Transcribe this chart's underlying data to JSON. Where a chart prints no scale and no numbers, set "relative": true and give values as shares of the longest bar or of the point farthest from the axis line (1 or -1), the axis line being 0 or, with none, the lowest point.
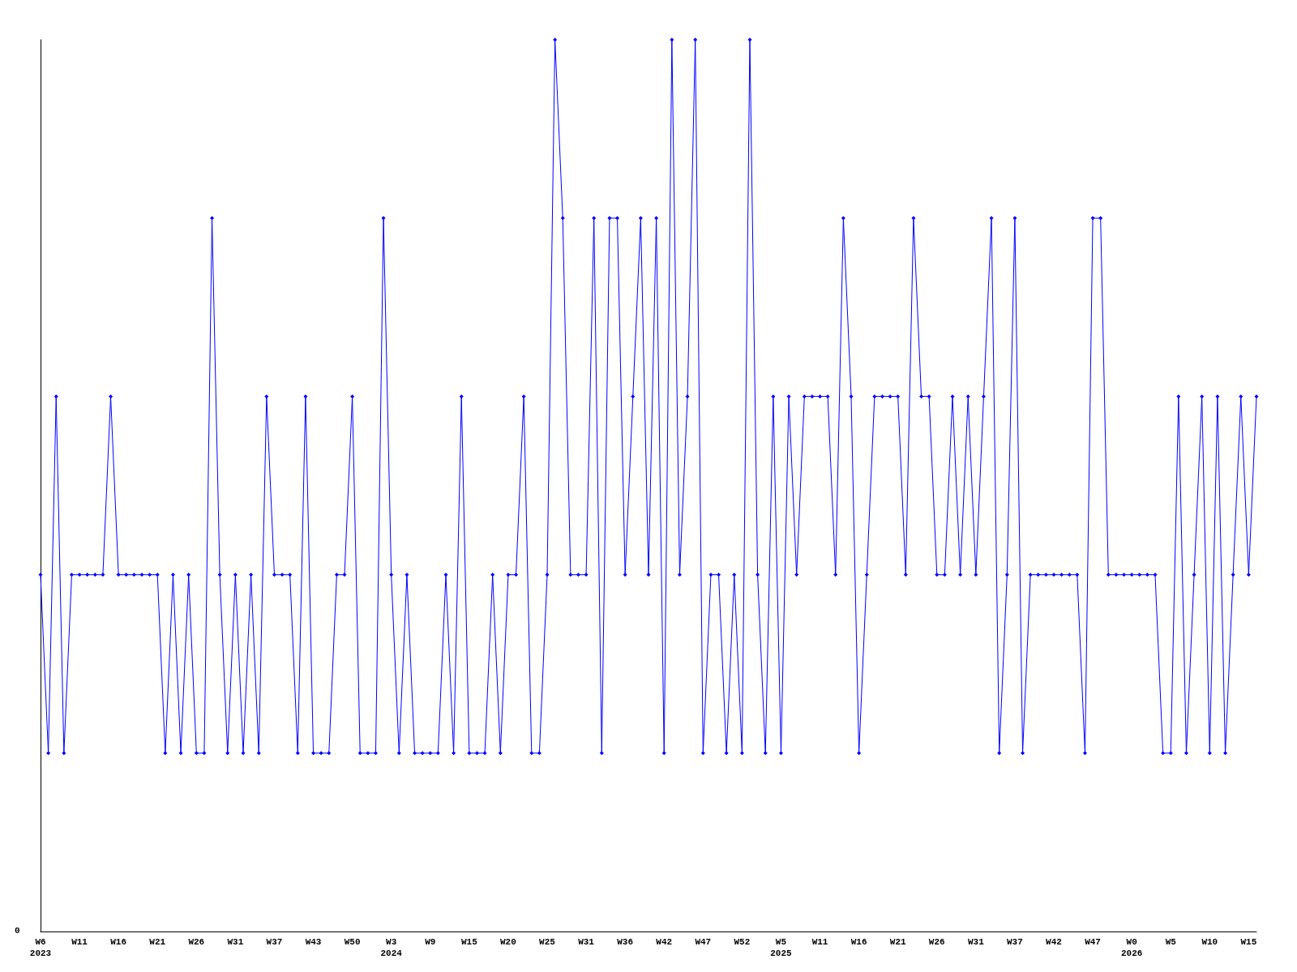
{
  "chart_data": {
    "type": "line",
    "relative": true,
    "categories": [
      "W6\n2023",
      null,
      null,
      null,
      null,
      "W11",
      null,
      null,
      null,
      null,
      "W16",
      null,
      null,
      null,
      null,
      "W21",
      null,
      null,
      null,
      null,
      "W26",
      null,
      null,
      null,
      null,
      "W31",
      null,
      null,
      null,
      null,
      "W37",
      null,
      null,
      null,
      null,
      "W43",
      null,
      null,
      null,
      null,
      "W50",
      null,
      null,
      null,
      null,
      "W3\n2024",
      null,
      null,
      null,
      null,
      "W9",
      null,
      null,
      null,
      null,
      "W15",
      null,
      null,
      null,
      null,
      "W20",
      null,
      null,
      null,
      null,
      "W25",
      null,
      null,
      null,
      null,
      "W31",
      null,
      null,
      null,
      null,
      "W36",
      null,
      null,
      null,
      null,
      "W42",
      null,
      null,
      null,
      null,
      "W47",
      null,
      null,
      null,
      null,
      "W52",
      null,
      null,
      null,
      null,
      "W5\n2025",
      null,
      null,
      null,
      null,
      "W11",
      null,
      null,
      null,
      null,
      "W16",
      null,
      null,
      null,
      null,
      "W21",
      null,
      null,
      null,
      null,
      "W26",
      null,
      null,
      null,
      null,
      "W31",
      null,
      null,
      null,
      null,
      "W37",
      null,
      null,
      null,
      null,
      "W42",
      null,
      null,
      null,
      null,
      "W47",
      null,
      null,
      null,
      null,
      "W0\n2026",
      null,
      null,
      null,
      null,
      "W5",
      null,
      null,
      null,
      null,
      "W10",
      null,
      null,
      null,
      null,
      "W15",
      null
    ],
    "annotations": [
      "0"
    ],
    "series": [
      {
        "color": "#0000ff",
        "values": [
          0.4,
          0.2,
          0.6,
          0.2,
          0.4,
          0.4,
          0.4,
          0.4,
          0.4,
          0.6,
          0.4,
          0.4,
          0.4,
          0.4,
          0.4,
          0.4,
          0.2,
          0.4,
          0.2,
          0.4,
          0.2,
          0.2,
          0.8,
          0.4,
          0.2,
          0.4,
          0.2,
          0.4,
          0.2,
          0.6,
          0.4,
          0.4,
          0.4,
          0.2,
          0.6,
          0.2,
          0.2,
          0.2,
          0.4,
          0.4,
          0.6,
          0.2,
          0.2,
          0.2,
          0.8,
          0.4,
          0.2,
          0.4,
          0.2,
          0.2,
          0.2,
          0.2,
          0.4,
          0.2,
          0.6,
          0.2,
          0.2,
          0.2,
          0.4,
          0.2,
          0.4,
          0.4,
          0.6,
          0.2,
          0.2,
          0.4,
          1,
          0.8,
          0.4,
          0.4,
          0.4,
          0.8,
          0.2,
          0.8,
          0.8,
          0.4,
          0.6,
          0.8,
          0.4,
          0.8,
          0.2,
          1,
          0.4,
          0.6,
          1,
          0.2,
          0.4,
          0.4,
          0.2,
          0.4,
          0.2,
          1,
          0.4,
          0.2,
          0.6,
          0.2,
          0.6,
          0.4,
          0.6,
          0.6,
          0.6,
          0.6,
          0.4,
          0.8,
          0.6,
          0.2,
          0.4,
          0.6,
          0.6,
          0.6,
          0.6,
          0.4,
          0.8,
          0.6,
          0.6,
          0.4,
          0.4,
          0.6,
          0.4,
          0.6,
          0.4,
          0.6,
          0.8,
          0.2,
          0.4,
          0.8,
          0.2,
          0.4,
          0.4,
          0.4,
          0.4,
          0.4,
          0.4,
          0.4,
          0.2,
          0.8,
          0.8,
          0.4,
          0.4,
          0.4,
          0.4,
          0.4,
          0.4,
          0.4,
          0.2,
          0.2,
          0.6,
          0.2,
          0.4,
          0.6,
          0.2,
          0.6,
          0.2,
          0.4,
          0.6,
          0.4,
          0.6
        ]
      }
    ],
    "marker": "diamond",
    "grid": false
  }
}
